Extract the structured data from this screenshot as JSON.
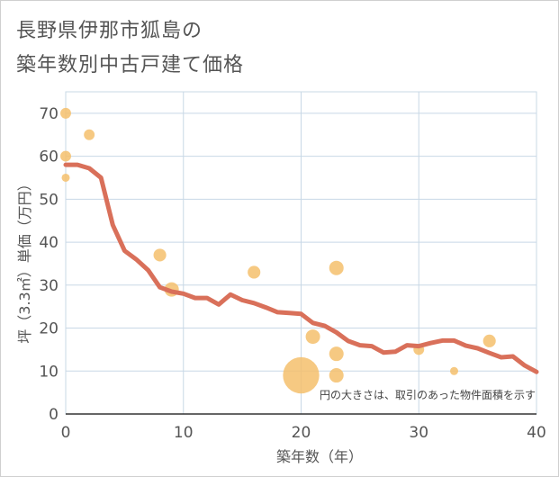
{
  "chart_data": {
    "type": "scatter+line",
    "title_line1": "長野県伊那市狐島の",
    "title_line2": "築年数別中古戸建て価格",
    "xlabel": "築年数（年）",
    "ylabel": "坪（3.3㎡）単価（万円）",
    "xlim": [
      0,
      40
    ],
    "ylim": [
      0,
      75
    ],
    "xticks": [
      0,
      10,
      20,
      30,
      40
    ],
    "yticks": [
      0,
      10,
      20,
      30,
      40,
      50,
      60,
      70
    ],
    "note": "円の大きさは、取引のあった物件面積を示す",
    "colors": {
      "line": "#d9705a",
      "bubble": "#f4c06c",
      "grid": "#c8d8e6"
    },
    "bubbles": [
      {
        "x": 0,
        "y": 70,
        "size": 2
      },
      {
        "x": 0,
        "y": 60,
        "size": 2
      },
      {
        "x": 0,
        "y": 55,
        "size": 1
      },
      {
        "x": 2,
        "y": 65,
        "size": 2
      },
      {
        "x": 8,
        "y": 37,
        "size": 3
      },
      {
        "x": 9,
        "y": 29,
        "size": 4
      },
      {
        "x": 16,
        "y": 33,
        "size": 3
      },
      {
        "x": 20,
        "y": 9,
        "size": 30
      },
      {
        "x": 21,
        "y": 18,
        "size": 4
      },
      {
        "x": 23,
        "y": 34,
        "size": 4
      },
      {
        "x": 23,
        "y": 14,
        "size": 4
      },
      {
        "x": 23,
        "y": 9,
        "size": 4
      },
      {
        "x": 30,
        "y": 15,
        "size": 2
      },
      {
        "x": 33,
        "y": 10,
        "size": 1
      },
      {
        "x": 36,
        "y": 17,
        "size": 3
      }
    ],
    "trend": {
      "x": [
        0,
        1,
        2,
        3,
        4,
        5,
        6,
        7,
        8,
        9,
        10,
        11,
        12,
        13,
        14,
        15,
        16,
        17,
        18,
        19,
        20,
        21,
        22,
        23,
        24,
        25,
        26,
        27,
        28,
        29,
        30,
        31,
        32,
        33,
        34,
        35,
        36,
        37,
        38,
        39,
        40
      ],
      "y": [
        58,
        58,
        57.2,
        55,
        44,
        38,
        36,
        33.5,
        29.5,
        28.5,
        28,
        27,
        27,
        25.5,
        27.8,
        26.5,
        25.8,
        24.8,
        23.7,
        23.5,
        23.3,
        21.2,
        20.5,
        19,
        17,
        16,
        15.8,
        14.3,
        14.5,
        16,
        15.8,
        16.5,
        17.1,
        17.1,
        15.9,
        15.3,
        14.2,
        13.2,
        13.4,
        11.3,
        9.8
      ]
    }
  }
}
